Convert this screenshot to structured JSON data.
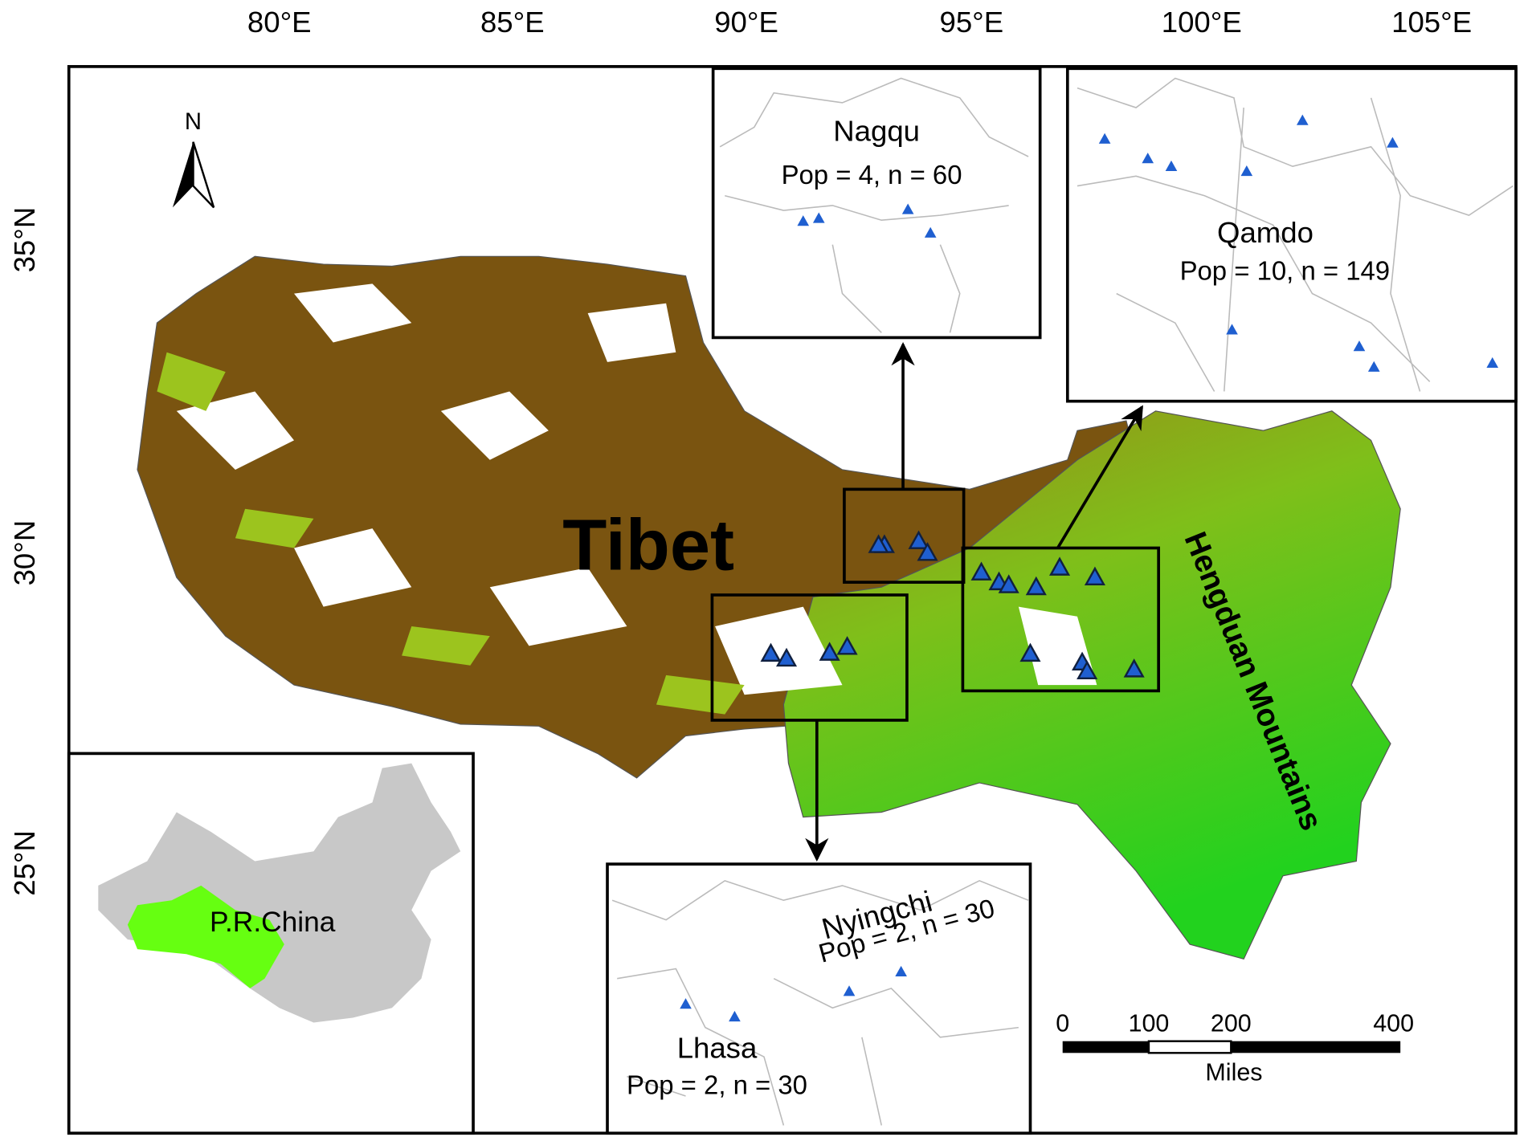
{
  "axes": {
    "longitude": [
      "80°E",
      "85°E",
      "90°E",
      "95°E",
      "100°E",
      "105°E"
    ],
    "latitude": [
      "35°N",
      "30°N",
      "25°N"
    ]
  },
  "north_arrow": "N",
  "labels": {
    "region": "Tibet",
    "mountains": "Hengduan Mountains"
  },
  "insets": [
    {
      "name": "Nagqu",
      "stats": "Pop = 4, n = 60"
    },
    {
      "name": "Qamdo",
      "stats": "Pop = 10, n = 149"
    },
    {
      "name": "Nyingchi",
      "stats": "Pop = 2, n = 30"
    },
    {
      "name": "Lhasa",
      "stats": "Pop = 2, n = 30"
    }
  ],
  "china_inset": {
    "label": "P.R.China"
  },
  "scale_bar": {
    "ticks": [
      "0",
      "100",
      "200",
      "400"
    ],
    "unit": "Miles"
  }
}
